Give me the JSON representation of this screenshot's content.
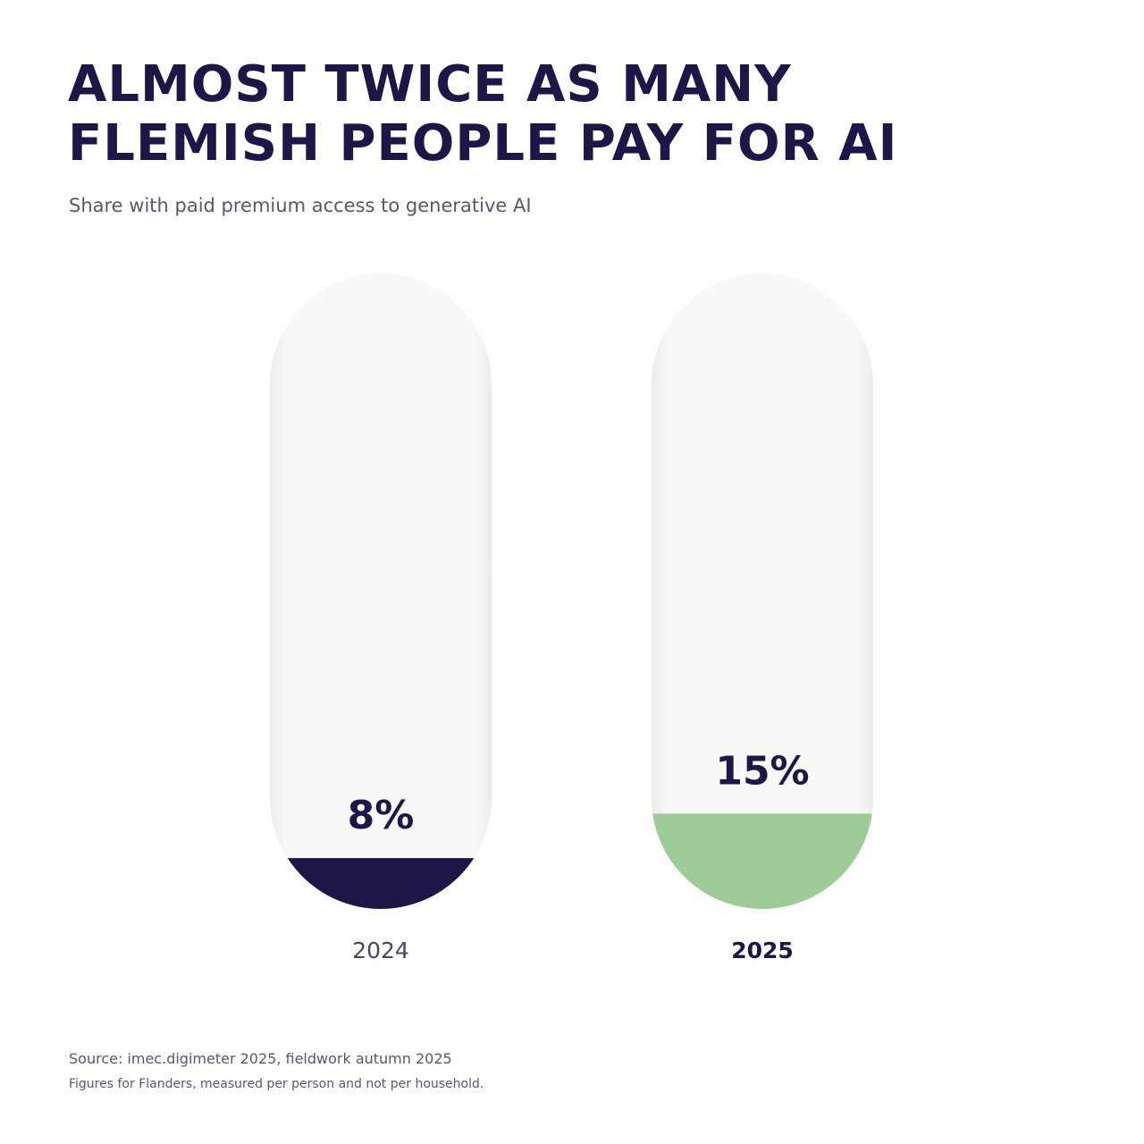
{
  "chart_data": {
    "type": "capsule",
    "title": "ALMOST TWICE AS MANY FLEMISH PEOPLE PAY FOR AI",
    "subtitle": "Share with paid premium access to generative AI",
    "categories": [
      "2024",
      "2025"
    ],
    "values": [
      8,
      15
    ],
    "value_labels": [
      "8%",
      "15%"
    ],
    "colors": [
      "#1e1646",
      "#9dcc98"
    ],
    "ylim": [
      0,
      100
    ],
    "source": "Source: imec.digimeter 2025, fieldwork autumn 2025",
    "note": "Figures for Flanders, measured per person and not per household."
  }
}
